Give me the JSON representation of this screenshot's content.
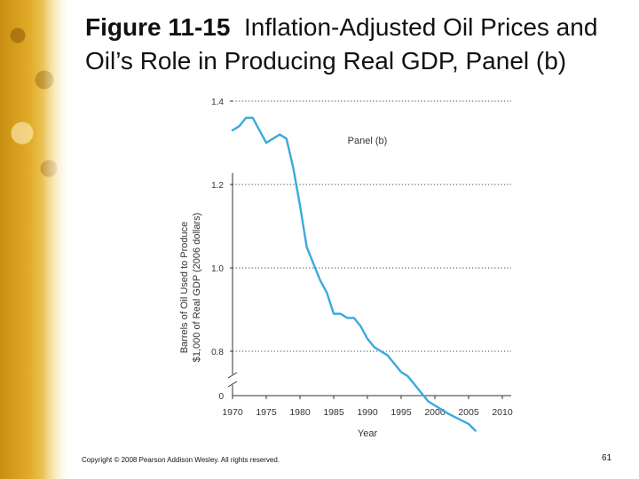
{
  "slide": {
    "title_number": "Figure 11-15",
    "title_text": "Inflation-Adjusted Oil Prices and Oil’s Role in Producing Real GDP, Panel (b)",
    "copyright": "Copyright © 2008 Pearson Addison Wesley. All rights reserved.",
    "page_number": "61"
  },
  "colors": {
    "line": "#3ba9dc",
    "axis": "#333333",
    "grid": "#444444"
  },
  "chart_data": {
    "type": "line",
    "title": "Panel (b)",
    "xlabel": "Year",
    "ylabel_line1": "Barrels of Oil Used to Produce",
    "ylabel_line2": "$1,000 of Real GDP (2006 dollars)",
    "x_ticks": [
      1970,
      1975,
      1980,
      1985,
      1990,
      1995,
      2000,
      2005,
      2010
    ],
    "y_ticks": [
      0.8,
      1.0,
      1.2,
      1.4
    ],
    "y_zero_label": "0",
    "xlim": [
      1970,
      2010
    ],
    "ylim_broken": [
      0.6,
      1.45
    ],
    "axis_break": true,
    "grid": "horizontal-dotted",
    "series": [
      {
        "x": [
          1970,
          1971,
          1972,
          1973,
          1974,
          1975,
          1976,
          1977,
          1978,
          1979,
          1980,
          1981,
          1982,
          1983,
          1984,
          1985,
          1986,
          1987,
          1988,
          1989,
          1990,
          1991,
          1992,
          1993,
          1994,
          1995,
          1996,
          1997,
          1998,
          1999,
          2000,
          2001,
          2002,
          2003,
          2004,
          2005,
          2006
        ],
        "values": [
          1.33,
          1.34,
          1.36,
          1.36,
          1.33,
          1.3,
          1.31,
          1.32,
          1.31,
          1.24,
          1.15,
          1.05,
          1.01,
          0.97,
          0.94,
          0.89,
          0.89,
          0.88,
          0.88,
          0.86,
          0.83,
          0.81,
          0.8,
          0.79,
          0.77,
          0.75,
          0.74,
          0.72,
          0.7,
          0.68,
          0.67,
          0.66,
          0.65,
          0.64,
          0.63,
          0.62,
          0.6
        ]
      }
    ]
  }
}
